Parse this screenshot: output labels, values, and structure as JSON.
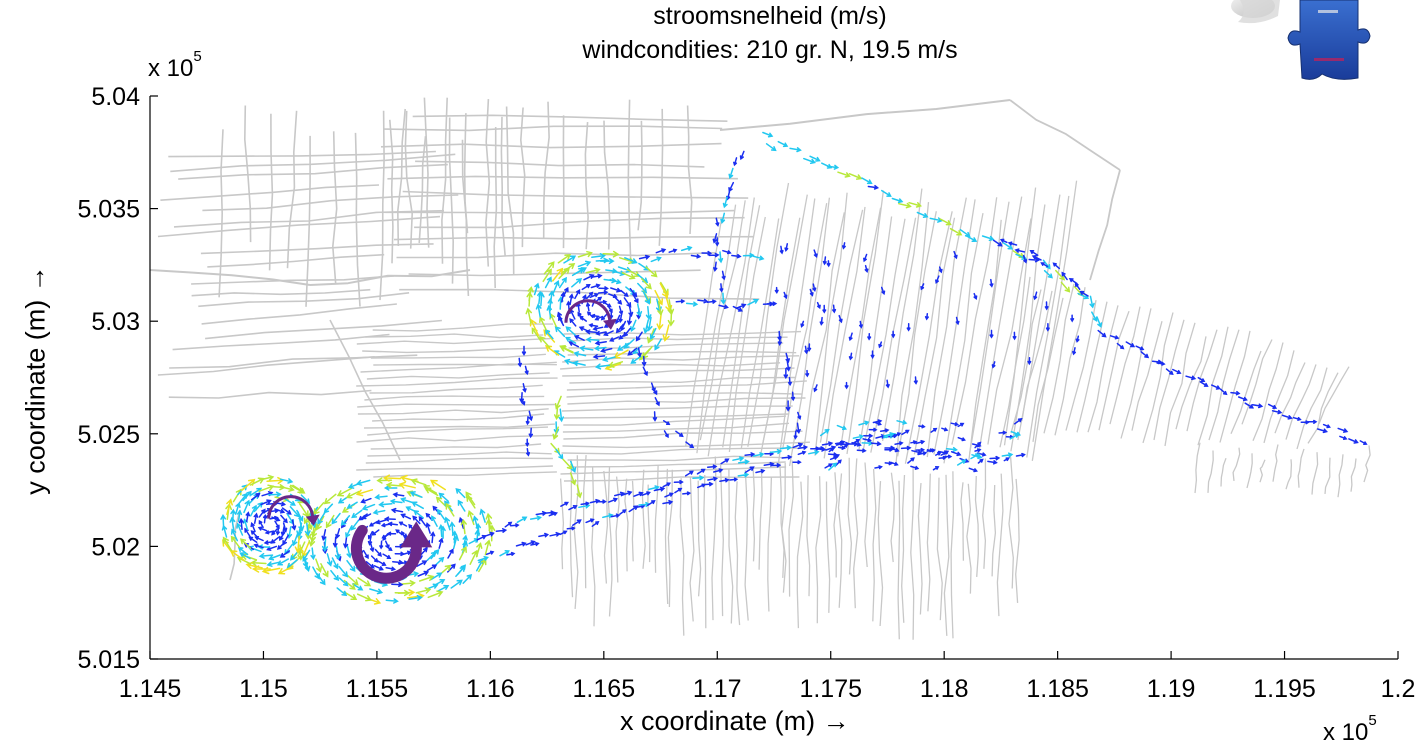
{
  "chart_data": {
    "type": "vector-field",
    "title": "stroomsnelheid (m/s)",
    "subtitle": "windcondities: 210 gr. N, 19.5 m/s",
    "xlabel": "x coordinate (m) →",
    "ylabel": "y coordinate (m) →",
    "x_multiplier_base": "x 10",
    "x_multiplier_exponent": "5",
    "y_multiplier_base": "x 10",
    "y_multiplier_exponent": "5",
    "xlim": [
      1.145,
      1.2
    ],
    "ylim": [
      5.015,
      5.04
    ],
    "xticks": [
      "1.145",
      "1.15",
      "1.155",
      "1.16",
      "1.165",
      "1.17",
      "1.175",
      "1.18",
      "1.185",
      "1.19",
      "1.195",
      "1.2"
    ],
    "yticks": [
      "5.015",
      "5.02",
      "5.025",
      "5.03",
      "5.035",
      "5.04"
    ],
    "xtick_values": [
      1.145,
      1.15,
      1.155,
      1.16,
      1.165,
      1.17,
      1.175,
      1.18,
      1.185,
      1.19,
      1.195,
      1.2
    ],
    "ytick_values": [
      5.015,
      5.02,
      5.025,
      5.03,
      5.035,
      5.04
    ],
    "grid": false,
    "legend": "none",
    "colors": {
      "background_network": "#c8c8c8",
      "slow": "#1a2ef0",
      "medium": "#22c8f0",
      "fast": "#b8e83a",
      "fastest": "#f0e020",
      "rotation_arrow": "#6a2888"
    },
    "eddies": [
      {
        "name": "west-small-clockwise",
        "x": 1.1512,
        "y": 5.0215,
        "direction": "clockwise"
      },
      {
        "name": "west-large-counterclockwise",
        "x": 1.1555,
        "y": 5.0196,
        "direction": "counterclockwise"
      },
      {
        "name": "north-clockwise",
        "x": 1.1643,
        "y": 5.0302,
        "direction": "clockwise"
      }
    ]
  }
}
